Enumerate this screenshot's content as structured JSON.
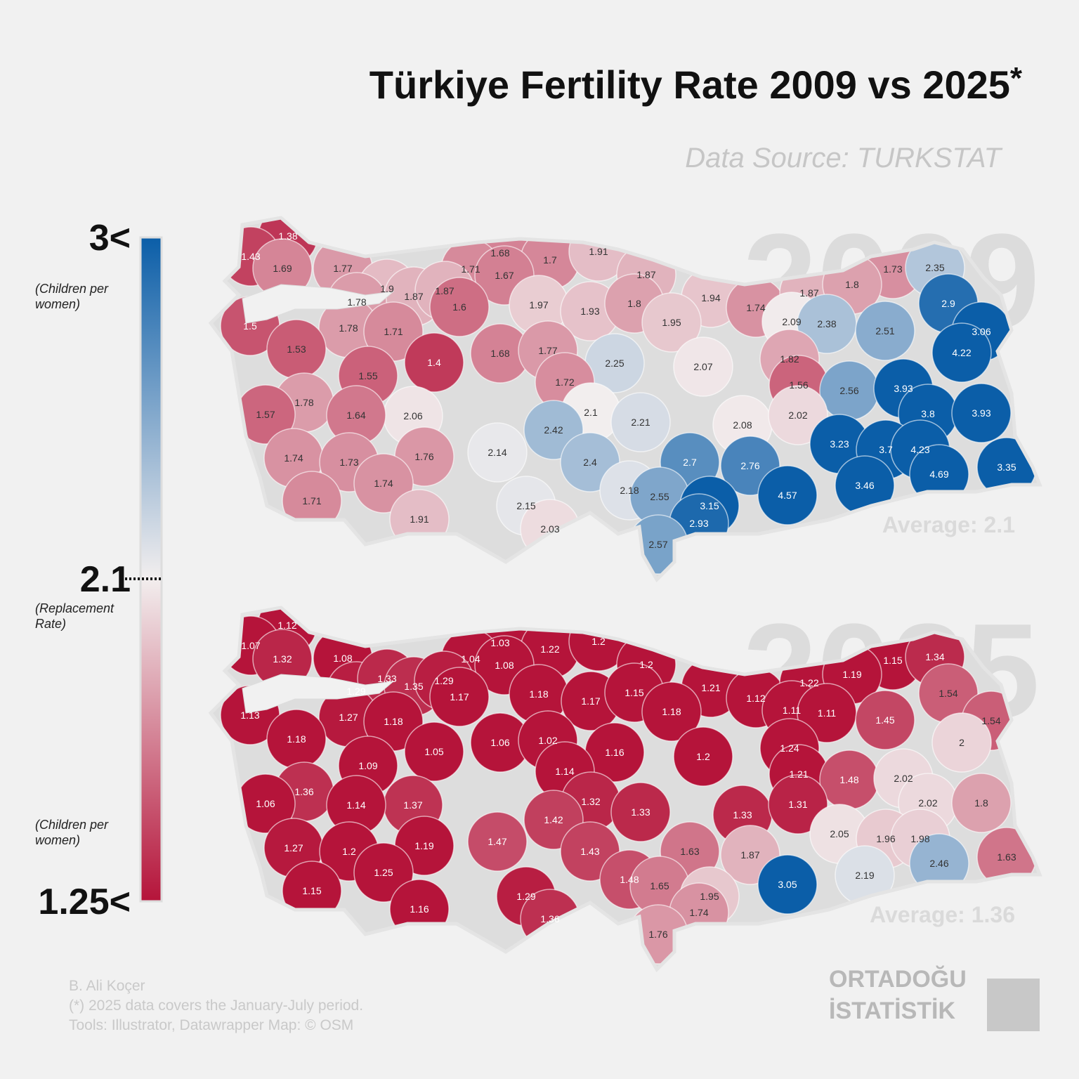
{
  "title": "Türkiye Fertility Rate 2009 vs 2025",
  "title_mark": "*",
  "source": "Data Source: TURKSTAT",
  "legend": {
    "high": {
      "label": "3<",
      "value": 3,
      "note": "(Children per women)",
      "color": "#0b5ea8"
    },
    "mid": {
      "label": "2.1",
      "value": 2.1,
      "note": "(Replacement Rate)",
      "color": "#f2eeee"
    },
    "low": {
      "label": "1.25<",
      "value": 1.25,
      "note": "(Children per women)",
      "color": "#b5143a"
    }
  },
  "maps": [
    {
      "year": "2009",
      "average": "Average: 2.1",
      "values": [
        1.38,
        1.43,
        1.69,
        1.77,
        1.68,
        1.7,
        1.91,
        1.71,
        1.67,
        1.87,
        1.73,
        2.35,
        1.9,
        1.87,
        1.87,
        1.78,
        1.6,
        1.97,
        1.93,
        1.8,
        1.94,
        1.74,
        1.87,
        1.8,
        2.9,
        1.5,
        1.78,
        1.71,
        1.95,
        2.09,
        2.38,
        2.51,
        3.06,
        1.53,
        1.68,
        1.77,
        4.22,
        1.4,
        2.25,
        2.07,
        1.82,
        1.55,
        1.72,
        1.56,
        2.56,
        3.93,
        1.78,
        2.06,
        2.1,
        2.21,
        2.08,
        2.02,
        3.8,
        3.93,
        1.57,
        1.64,
        2.42,
        1.74,
        1.73,
        1.76,
        2.14,
        2.4,
        2.7,
        2.76,
        3.23,
        3.7,
        4.23,
        3.35,
        1.74,
        4.69,
        3.46,
        1.71,
        2.18,
        2.55,
        4.57,
        3.15,
        2.15,
        1.91,
        2.03,
        2.93,
        2.57
      ]
    },
    {
      "year": "2025",
      "average": "Average: 1.36",
      "values": [
        1.12,
        1.07,
        1.32,
        1.08,
        1.03,
        1.22,
        1.2,
        1.04,
        1.08,
        1.2,
        1.15,
        1.34,
        1.29,
        1.33,
        1.35,
        1.29,
        1.17,
        1.18,
        1.17,
        1.15,
        1.21,
        1.12,
        1.22,
        1.19,
        1.54,
        1.13,
        1.27,
        1.18,
        1.18,
        1.11,
        1.11,
        1.45,
        1.54,
        1.18,
        1.06,
        1.02,
        2,
        1.05,
        1.16,
        1.2,
        1.24,
        1.09,
        1.14,
        1.21,
        1.48,
        2.02,
        1.36,
        1.37,
        1.32,
        1.33,
        1.33,
        1.31,
        2.02,
        1.8,
        1.06,
        1.14,
        1.42,
        1.27,
        1.2,
        1.19,
        1.47,
        1.43,
        1.63,
        1.87,
        2.05,
        1.96,
        1.98,
        1.63,
        1.25,
        2.46,
        2.19,
        1.15,
        1.48,
        1.65,
        3.05,
        1.95,
        1.29,
        1.16,
        1.36,
        1.74,
        1.76
      ]
    }
  ],
  "footer": [
    "B. Ali Koçer",
    "(*) 2025 data covers the January-July period.",
    "Tools: Illustrator, Datawrapper Map: © OSM"
  ],
  "logo": [
    "ORTADOĞU",
    "İSTATİSTİK"
  ]
}
